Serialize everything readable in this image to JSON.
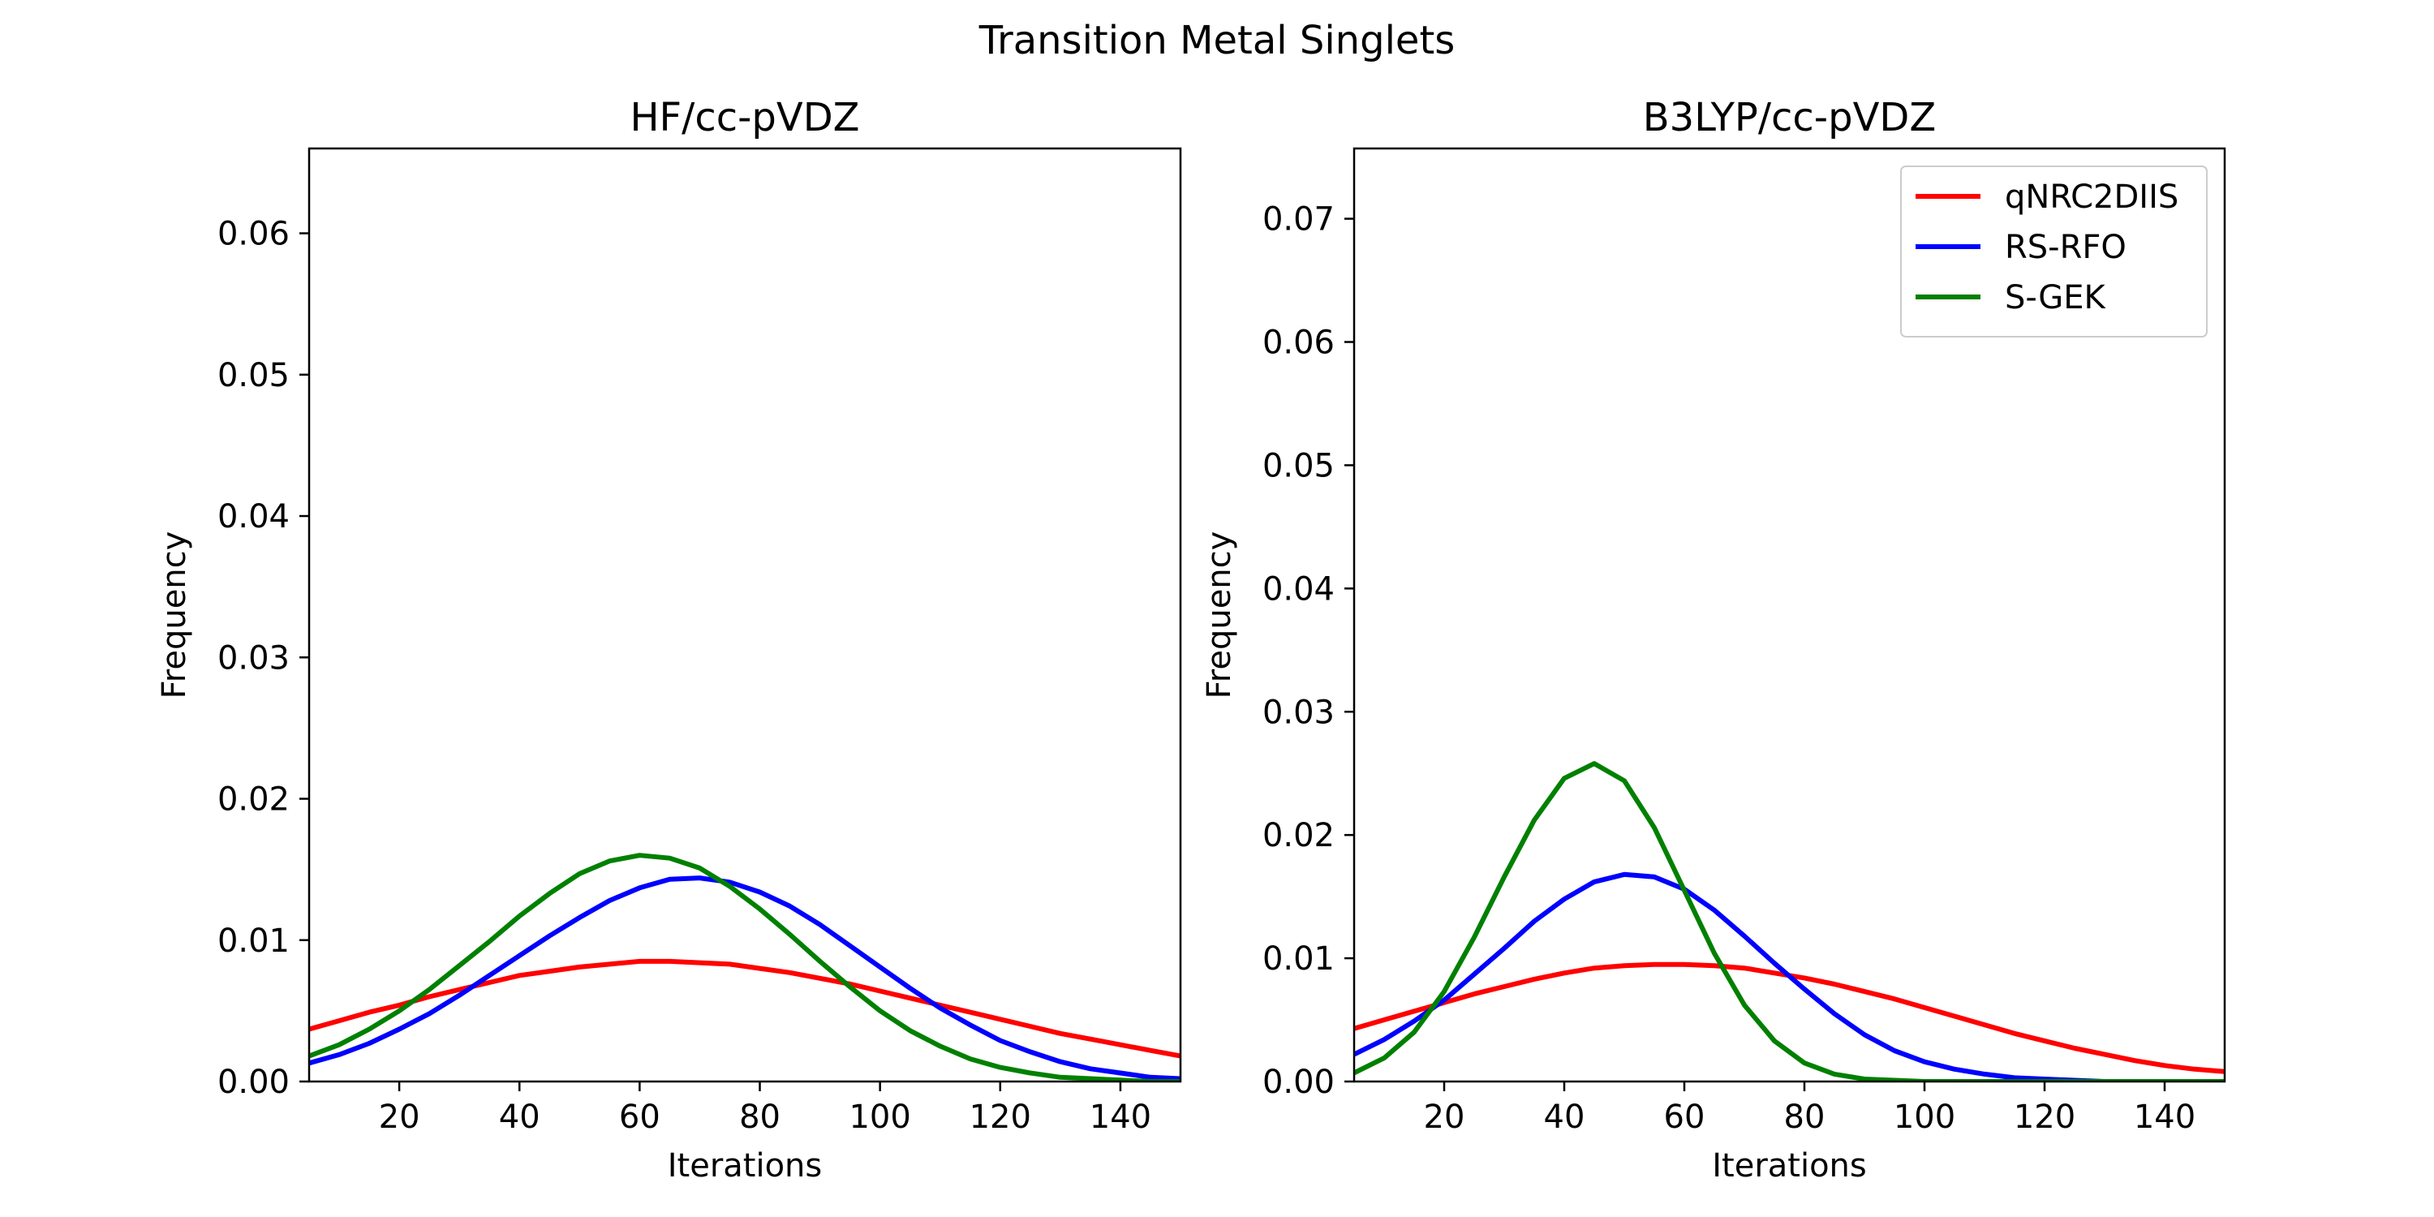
{
  "figure": {
    "title": "Transition Metal Singlets"
  },
  "chart_data": [
    {
      "type": "line",
      "title": "HF/cc-pVDZ",
      "xlabel": "Iterations",
      "ylabel": "Frequency",
      "xlim": [
        5,
        150
      ],
      "ylim": [
        0,
        0.066
      ],
      "xticks": [
        20,
        40,
        60,
        80,
        100,
        120,
        140
      ],
      "yticks": [
        0.0,
        0.01,
        0.02,
        0.03,
        0.04,
        0.05,
        0.06
      ],
      "ytick_labels": [
        "0.00",
        "0.01",
        "0.02",
        "0.03",
        "0.04",
        "0.05",
        "0.06"
      ],
      "grid": false,
      "legend": null,
      "series": [
        {
          "name": "qNRC2DIIS",
          "color": "#ff0000",
          "x": [
            5,
            10,
            15,
            20,
            25,
            30,
            35,
            40,
            45,
            50,
            55,
            60,
            65,
            70,
            75,
            80,
            85,
            90,
            95,
            100,
            105,
            110,
            115,
            120,
            125,
            130,
            135,
            140,
            145,
            150
          ],
          "y": [
            0.0037,
            0.0043,
            0.0049,
            0.0054,
            0.006,
            0.0065,
            0.007,
            0.0075,
            0.0078,
            0.0081,
            0.0083,
            0.0085,
            0.0085,
            0.0084,
            0.0083,
            0.008,
            0.0077,
            0.0073,
            0.0069,
            0.0064,
            0.0059,
            0.0054,
            0.0049,
            0.0044,
            0.0039,
            0.0034,
            0.003,
            0.0026,
            0.0022,
            0.0018
          ]
        },
        {
          "name": "RS-RFO",
          "color": "#0000ff",
          "x": [
            5,
            10,
            15,
            20,
            25,
            30,
            35,
            40,
            45,
            50,
            55,
            60,
            65,
            70,
            75,
            80,
            85,
            90,
            95,
            100,
            105,
            110,
            115,
            120,
            125,
            130,
            135,
            140,
            145,
            150
          ],
          "y": [
            0.0013,
            0.0019,
            0.0027,
            0.0037,
            0.0048,
            0.0061,
            0.0075,
            0.0089,
            0.0103,
            0.0116,
            0.0128,
            0.0137,
            0.0143,
            0.0144,
            0.0141,
            0.0134,
            0.0124,
            0.0111,
            0.0096,
            0.0081,
            0.0066,
            0.0052,
            0.004,
            0.0029,
            0.0021,
            0.0014,
            0.0009,
            0.0006,
            0.0003,
            0.0002
          ]
        },
        {
          "name": "S-GEK",
          "color": "#008000",
          "x": [
            5,
            10,
            15,
            20,
            25,
            30,
            35,
            40,
            45,
            50,
            55,
            60,
            65,
            70,
            75,
            80,
            85,
            90,
            95,
            100,
            105,
            110,
            115,
            120,
            125,
            130,
            135,
            140,
            145,
            150
          ],
          "y": [
            0.0018,
            0.0026,
            0.0037,
            0.005,
            0.0065,
            0.0082,
            0.0099,
            0.0117,
            0.0133,
            0.0147,
            0.0156,
            0.016,
            0.0158,
            0.0151,
            0.0138,
            0.0122,
            0.0104,
            0.0085,
            0.0067,
            0.005,
            0.0036,
            0.0025,
            0.0016,
            0.001,
            0.0006,
            0.0003,
            0.0002,
            0.0001,
            0.0,
            0.0
          ]
        }
      ]
    },
    {
      "type": "line",
      "title": "B3LYP/cc-pVDZ",
      "xlabel": "Iterations",
      "ylabel": "Frequency",
      "xlim": [
        5,
        150
      ],
      "ylim": [
        0,
        0.0757
      ],
      "xticks": [
        20,
        40,
        60,
        80,
        100,
        120,
        140
      ],
      "yticks": [
        0.0,
        0.01,
        0.02,
        0.03,
        0.04,
        0.05,
        0.06,
        0.07
      ],
      "ytick_labels": [
        "0.00",
        "0.01",
        "0.02",
        "0.03",
        "0.04",
        "0.05",
        "0.06",
        "0.07"
      ],
      "grid": false,
      "legend": "top-right",
      "series": [
        {
          "name": "qNRC2DIIS",
          "color": "#ff0000",
          "x": [
            5,
            10,
            15,
            20,
            25,
            30,
            35,
            40,
            45,
            50,
            55,
            60,
            65,
            70,
            75,
            80,
            85,
            90,
            95,
            100,
            105,
            110,
            115,
            120,
            125,
            130,
            135,
            140,
            145,
            150
          ],
          "y": [
            0.0043,
            0.005,
            0.0057,
            0.0064,
            0.0071,
            0.0077,
            0.0083,
            0.0088,
            0.0092,
            0.0094,
            0.0095,
            0.0095,
            0.0094,
            0.0092,
            0.0088,
            0.0084,
            0.0079,
            0.0073,
            0.0067,
            0.006,
            0.0053,
            0.0046,
            0.0039,
            0.0033,
            0.0027,
            0.0022,
            0.0017,
            0.0013,
            0.001,
            0.0008
          ]
        },
        {
          "name": "RS-RFO",
          "color": "#0000ff",
          "x": [
            5,
            10,
            15,
            20,
            25,
            30,
            35,
            40,
            45,
            50,
            55,
            60,
            65,
            70,
            75,
            80,
            85,
            90,
            95,
            100,
            105,
            110,
            115,
            120,
            125,
            130,
            135,
            140,
            145,
            150
          ],
          "y": [
            0.0022,
            0.0034,
            0.0049,
            0.0066,
            0.0087,
            0.0108,
            0.013,
            0.0148,
            0.0162,
            0.0168,
            0.0166,
            0.0156,
            0.0139,
            0.0118,
            0.0096,
            0.0075,
            0.0055,
            0.0038,
            0.0025,
            0.0016,
            0.001,
            0.0006,
            0.0003,
            0.0002,
            0.0001,
            0.0,
            0.0,
            0.0,
            0.0,
            0.0
          ]
        },
        {
          "name": "S-GEK",
          "color": "#008000",
          "x": [
            5,
            10,
            15,
            20,
            25,
            30,
            35,
            40,
            45,
            50,
            55,
            60,
            65,
            70,
            75,
            80,
            85,
            90,
            95,
            100,
            105,
            110,
            115,
            120,
            125,
            130,
            135,
            140,
            145,
            150
          ],
          "y": [
            0.0007,
            0.0019,
            0.004,
            0.0073,
            0.0117,
            0.0166,
            0.0212,
            0.0246,
            0.0258,
            0.0244,
            0.0206,
            0.0155,
            0.0104,
            0.0062,
            0.0033,
            0.0015,
            0.0006,
            0.0002,
            0.0001,
            0.0,
            0.0,
            0.0,
            0.0,
            0.0,
            0.0,
            0.0,
            0.0,
            0.0,
            0.0,
            0.0
          ]
        }
      ]
    }
  ]
}
